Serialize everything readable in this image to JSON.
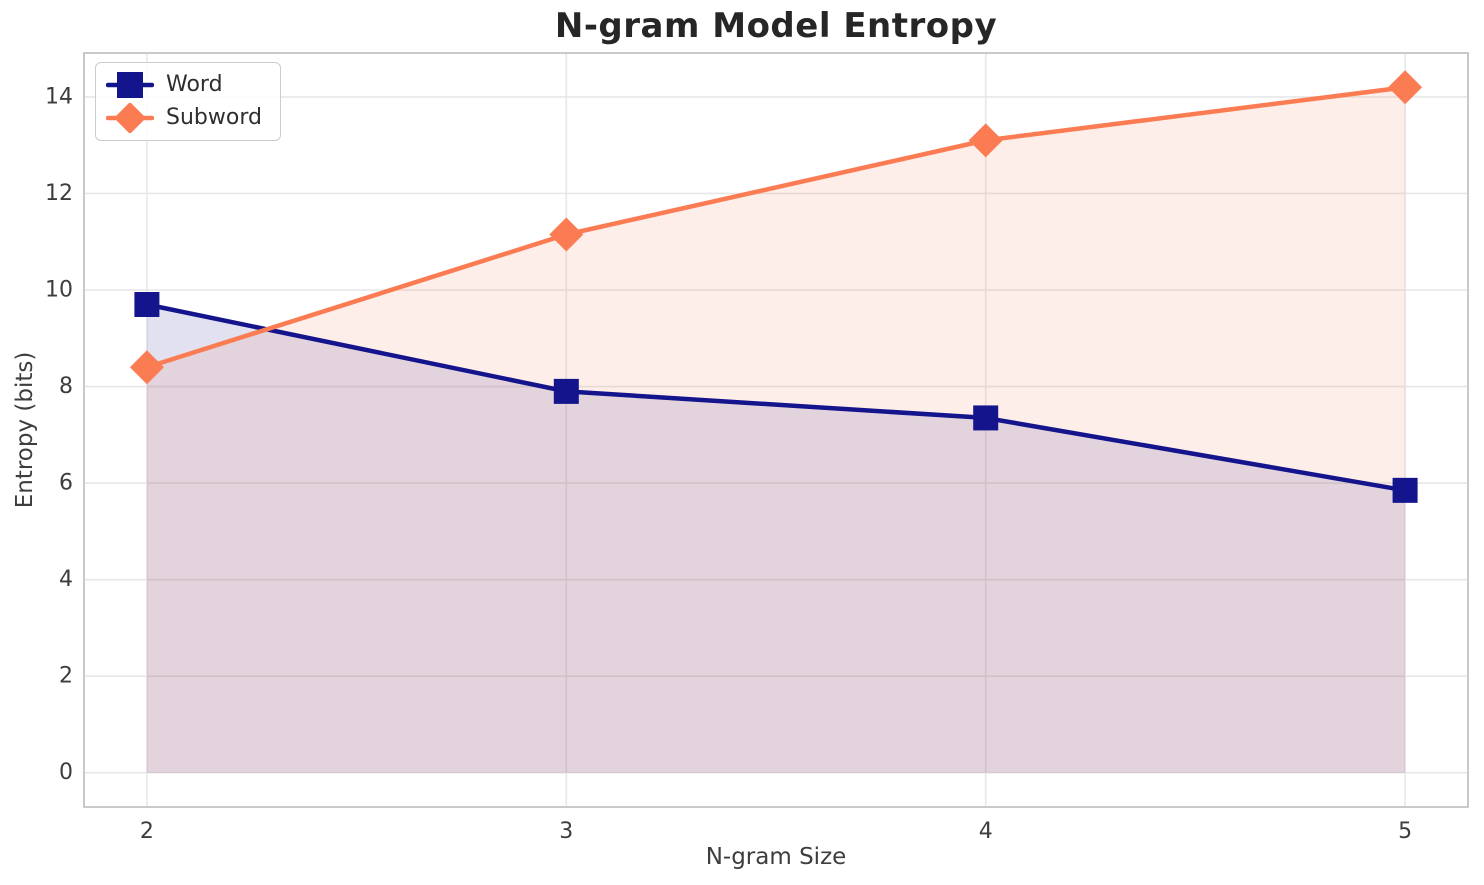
{
  "chart_data": {
    "type": "line",
    "title": "N-gram Model Entropy",
    "xlabel": "N-gram Size",
    "ylabel": "Entropy (bits)",
    "x": [
      2,
      3,
      4,
      5
    ],
    "series": [
      {
        "name": "Word",
        "values": [
          9.7,
          7.9,
          7.35,
          5.85
        ],
        "color": "#14148C",
        "marker": "square",
        "fill_to_zero": true
      },
      {
        "name": "Subword",
        "values": [
          8.4,
          11.15,
          13.1,
          14.2
        ],
        "color": "#FB7C53",
        "marker": "diamond",
        "fill_to_zero": true
      }
    ],
    "xticks": [
      "2",
      "3",
      "4",
      "5"
    ],
    "xtick_values": [
      2,
      3,
      4,
      5
    ],
    "yticks": [
      "0",
      "2",
      "4",
      "6",
      "8",
      "10",
      "12",
      "14"
    ],
    "ytick_values": [
      0,
      2,
      4,
      6,
      8,
      10,
      12,
      14
    ],
    "xlim": [
      1.85,
      5.15
    ],
    "ylim": [
      -0.71,
      14.91
    ],
    "grid": true,
    "legend_position": "upper left",
    "fill_alpha": 0.13,
    "line_width": 4.5,
    "colors": {
      "grid": "#E7E7E7",
      "spine": "#C9C9C9",
      "title_text": "#262626",
      "tick_text": "#3D3D3D",
      "background": "#FFFFFF"
    }
  }
}
